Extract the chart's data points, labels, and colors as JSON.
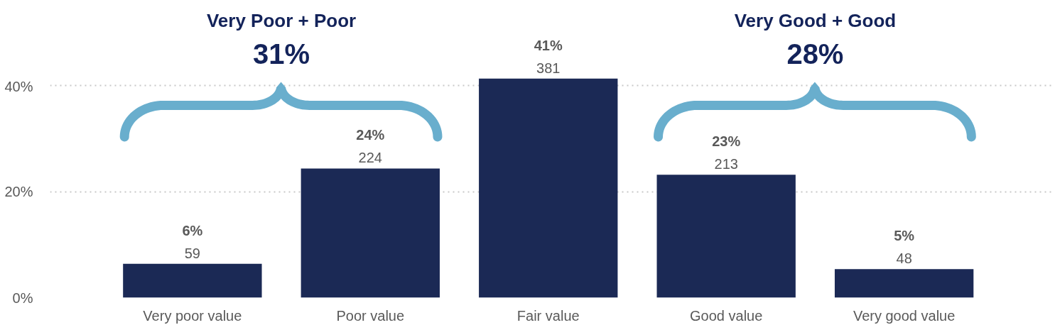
{
  "chart_data": {
    "type": "bar",
    "categories": [
      "Very poor value",
      "Poor value",
      "Fair value",
      "Good value",
      "Very good value"
    ],
    "values": [
      6.4,
      24.4,
      41.4,
      23.2,
      5.4
    ],
    "color": "#1b2955",
    "value_labels": [
      "6%\n59",
      "24%\n224",
      "41%\n381",
      "23%\n213",
      "5%\n48"
    ],
    "ylim": [
      0,
      41.4
    ],
    "yticks": [
      {
        "value": 0,
        "label": "0%"
      },
      {
        "value": 20,
        "label": "20%"
      },
      {
        "value": 40,
        "label": "40%"
      }
    ],
    "grid": "y",
    "annotations": [
      "Very Poor + Poor",
      "31%",
      "Very Good + Good",
      "28%"
    ]
  }
}
